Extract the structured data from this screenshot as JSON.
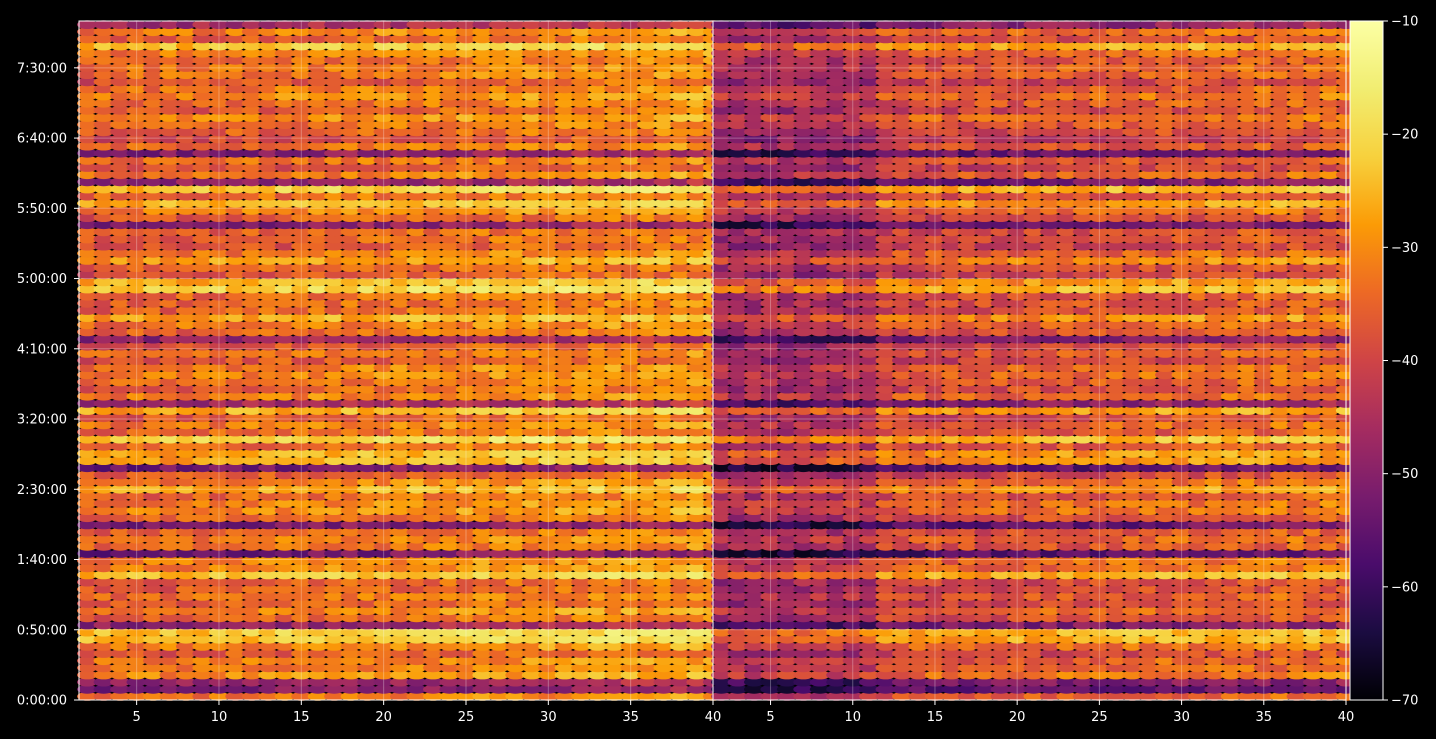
{
  "chart_data": {
    "type": "heatmap",
    "panels": [
      {
        "name": "",
        "x_ticks": [
          5,
          10,
          15,
          20,
          25,
          30,
          35,
          40
        ],
        "xlim": [
          1.5,
          40
        ],
        "y_tick_labels": [
          "0:00:00",
          "0:50:00",
          "1:40:00",
          "2:30:00",
          "3:20:00",
          "4:10:00",
          "5:00:00",
          "5:50:00",
          "6:40:00",
          "7:30:00"
        ],
        "y_tick_seconds": [
          0,
          3000,
          6000,
          9000,
          12000,
          15000,
          18000,
          21000,
          24000,
          27000
        ],
        "ylim_seconds": [
          0,
          29000
        ]
      },
      {
        "name": "",
        "x_ticks": [
          5,
          10,
          15,
          20,
          25,
          30,
          35,
          40
        ],
        "xlim": [
          1.5,
          40
        ],
        "y_tick_labels": [],
        "y_tick_seconds": [
          0,
          3000,
          6000,
          9000,
          12000,
          15000,
          18000,
          21000,
          24000,
          27000
        ],
        "ylim_seconds": [
          0,
          29000
        ]
      }
    ],
    "grid": true,
    "colorbar": {
      "colormap": "inferno",
      "vmin": -70,
      "vmax": -10,
      "ticks": [
        -70,
        -60,
        -50,
        -40,
        -30,
        -20,
        -10
      ],
      "tick_labels": [
        "−70",
        "−60",
        "−50",
        "−40",
        "−30",
        "−20",
        "−10"
      ]
    },
    "rows": 95,
    "columns": 39,
    "bright_bands_seconds": [
      2600,
      2950,
      5300,
      8950,
      10300,
      10650,
      11200,
      12400,
      16200,
      17700,
      18750,
      21350,
      21800,
      24100,
      27900
    ],
    "dark_bands_seconds": [
      500,
      900,
      3350,
      6150,
      7400,
      10000,
      12700,
      15400,
      20350,
      22150,
      23300,
      23850,
      28800
    ]
  }
}
